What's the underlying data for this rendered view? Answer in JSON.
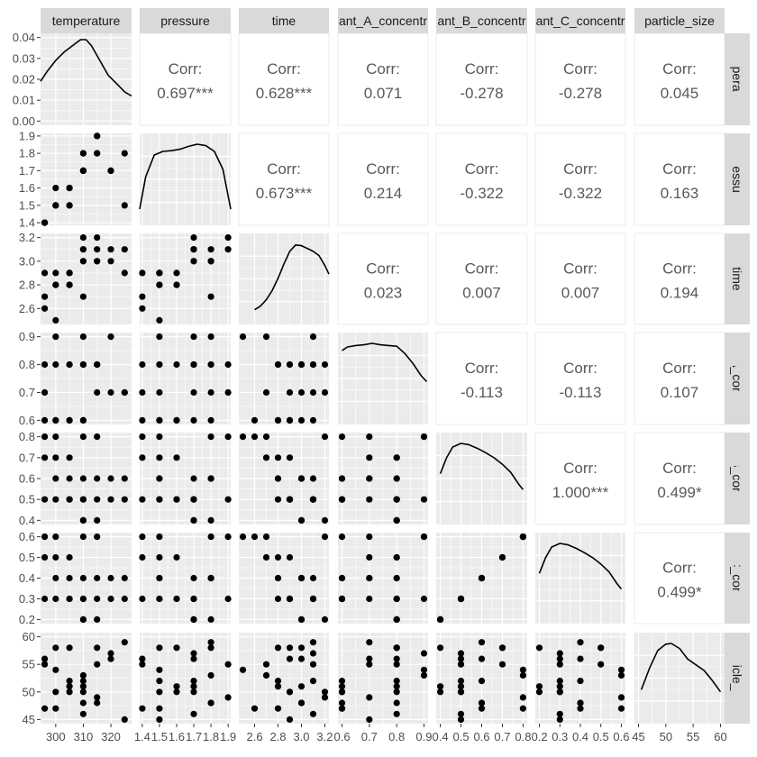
{
  "chart_data": {
    "type": "scatter-matrix",
    "variables": [
      "temperature",
      "pressure",
      "time",
      "reactant_A_concentration",
      "reactant_B_concentration",
      "reactant_C_concentration",
      "particle_size"
    ],
    "strip_labels": [
      "temperature",
      "pressure",
      "time",
      "ant_A_concentr",
      "ant_B_concentr",
      "ant_C_concentr",
      "particle_size"
    ],
    "ranges": [
      [
        294.5,
        327.5
      ],
      [
        1.385,
        1.915
      ],
      [
        2.465,
        3.235
      ],
      [
        0.585,
        0.915
      ],
      [
        0.38,
        0.82
      ],
      [
        0.18,
        0.62
      ],
      [
        44.25,
        60.75
      ]
    ],
    "ticks": [
      {
        "values": [
          300,
          310,
          320
        ],
        "labels": [
          "300",
          "310",
          "320"
        ]
      },
      {
        "values": [
          1.4,
          1.5,
          1.6,
          1.7,
          1.8,
          1.9
        ],
        "labels": [
          "1.4",
          "1.5",
          "1.6",
          "1.7",
          "1.8",
          "1.9"
        ]
      },
      {
        "values": [
          2.6,
          2.8,
          3.0,
          3.2
        ],
        "labels": [
          "2.6",
          "2.8",
          "3.0",
          "3.2"
        ]
      },
      {
        "values": [
          0.6,
          0.7,
          0.8,
          0.9
        ],
        "labels": [
          "0.6",
          "0.7",
          "0.8",
          "0.9"
        ]
      },
      {
        "values": [
          0.4,
          0.5,
          0.6,
          0.7,
          0.8
        ],
        "labels": [
          "0.4",
          "0.5",
          "0.6",
          "0.7",
          "0.8"
        ]
      },
      {
        "values": [
          0.2,
          0.3,
          0.4,
          0.5,
          0.6
        ],
        "labels": [
          "0.2",
          "0.3",
          "0.4",
          "0.5",
          "0.6"
        ]
      },
      {
        "values": [
          45,
          50,
          55,
          60
        ],
        "labels": [
          "45",
          "50",
          "55",
          "60"
        ]
      }
    ],
    "density_axis": {
      "ticks": [
        0,
        0.01,
        0.02,
        0.03,
        0.04
      ],
      "labels": [
        "0.00",
        "0.01",
        "0.02",
        "0.03",
        "0.04"
      ],
      "ylim": [
        -0.002,
        0.042
      ]
    },
    "density_curves": [
      {
        "x": [
          294.5,
          297,
          300,
          303,
          306,
          309,
          311,
          313,
          316,
          319,
          322,
          325,
          327.5
        ],
        "y": [
          0.019,
          0.024,
          0.029,
          0.033,
          0.036,
          0.039,
          0.039,
          0.036,
          0.029,
          0.022,
          0.018,
          0.014,
          0.012
        ]
      },
      {
        "x": [
          1.385,
          1.42,
          1.47,
          1.52,
          1.57,
          1.62,
          1.67,
          1.72,
          1.77,
          1.82,
          1.87,
          1.915
        ],
        "y": [
          0.1,
          0.55,
          0.85,
          0.9,
          0.91,
          0.93,
          0.97,
          1.0,
          0.98,
          0.9,
          0.65,
          0.1
        ]
      },
      {
        "x": [
          2.6,
          2.65,
          2.7,
          2.75,
          2.8,
          2.85,
          2.9,
          2.95,
          3.0,
          3.05,
          3.1,
          3.15,
          3.2,
          3.235
        ],
        "y": [
          0.08,
          0.13,
          0.22,
          0.35,
          0.52,
          0.72,
          0.9,
          0.99,
          0.98,
          0.94,
          0.9,
          0.84,
          0.7,
          0.58
        ]
      },
      {
        "x": [
          0.6,
          0.62,
          0.65,
          0.68,
          0.71,
          0.74,
          0.77,
          0.8,
          0.83,
          0.86,
          0.89,
          0.91
        ],
        "y": [
          0.9,
          0.95,
          0.97,
          0.98,
          1.0,
          0.98,
          0.97,
          0.96,
          0.86,
          0.72,
          0.55,
          0.47
        ]
      },
      {
        "x": [
          0.4,
          0.43,
          0.46,
          0.5,
          0.54,
          0.58,
          0.62,
          0.66,
          0.7,
          0.74,
          0.78,
          0.8
        ],
        "y": [
          0.58,
          0.8,
          0.95,
          1.0,
          0.98,
          0.93,
          0.87,
          0.8,
          0.71,
          0.6,
          0.43,
          0.36
        ]
      },
      {
        "x": [
          0.2,
          0.23,
          0.26,
          0.3,
          0.34,
          0.38,
          0.42,
          0.46,
          0.5,
          0.54,
          0.58,
          0.6
        ],
        "y": [
          0.58,
          0.8,
          0.95,
          1.0,
          0.98,
          0.93,
          0.87,
          0.8,
          0.71,
          0.6,
          0.43,
          0.36
        ]
      },
      {
        "x": [
          45.5,
          47,
          48.5,
          50,
          51,
          52.5,
          54,
          55.5,
          57,
          58.5,
          60
        ],
        "y": [
          0.35,
          0.65,
          0.9,
          0.99,
          1.0,
          0.93,
          0.78,
          0.7,
          0.62,
          0.48,
          0.32
        ]
      }
    ],
    "correlations": [
      {
        "row": 0,
        "col": 1,
        "value": "0.697***"
      },
      {
        "row": 0,
        "col": 2,
        "value": "0.628***"
      },
      {
        "row": 0,
        "col": 3,
        "value": "0.071"
      },
      {
        "row": 0,
        "col": 4,
        "value": "-0.278"
      },
      {
        "row": 0,
        "col": 5,
        "value": "-0.278"
      },
      {
        "row": 0,
        "col": 6,
        "value": "0.045"
      },
      {
        "row": 1,
        "col": 2,
        "value": "0.673***"
      },
      {
        "row": 1,
        "col": 3,
        "value": "0.214"
      },
      {
        "row": 1,
        "col": 4,
        "value": "-0.322"
      },
      {
        "row": 1,
        "col": 5,
        "value": "-0.322"
      },
      {
        "row": 1,
        "col": 6,
        "value": "0.163"
      },
      {
        "row": 2,
        "col": 3,
        "value": "0.023"
      },
      {
        "row": 2,
        "col": 4,
        "value": "0.007"
      },
      {
        "row": 2,
        "col": 5,
        "value": "0.007"
      },
      {
        "row": 2,
        "col": 6,
        "value": "0.194"
      },
      {
        "row": 3,
        "col": 4,
        "value": "-0.113"
      },
      {
        "row": 3,
        "col": 5,
        "value": "-0.113"
      },
      {
        "row": 3,
        "col": 6,
        "value": "0.107"
      },
      {
        "row": 4,
        "col": 5,
        "value": "1.000***"
      },
      {
        "row": 4,
        "col": 6,
        "value": "0.499*"
      },
      {
        "row": 5,
        "col": 6,
        "value": "0.499*"
      }
    ],
    "corr_label": "Corr:",
    "observations": [
      [
        296,
        1.4,
        2.6,
        0.6,
        0.8,
        0.6,
        47
      ],
      [
        296,
        1.4,
        2.7,
        0.7,
        0.7,
        0.5,
        55
      ],
      [
        296,
        1.4,
        2.9,
        0.8,
        0.5,
        0.3,
        56
      ],
      [
        300,
        1.5,
        2.5,
        0.9,
        0.8,
        0.6,
        54
      ],
      [
        300,
        1.6,
        2.8,
        0.8,
        0.7,
        0.5,
        58
      ],
      [
        300,
        1.5,
        2.9,
        0.6,
        0.5,
        0.3,
        50
      ],
      [
        300,
        1.5,
        2.8,
        0.6,
        0.6,
        0.4,
        47
      ],
      [
        305,
        1.5,
        2.9,
        0.8,
        0.7,
        0.5,
        58
      ],
      [
        305,
        1.6,
        2.8,
        0.6,
        0.5,
        0.3,
        51
      ],
      [
        305,
        1.5,
        2.8,
        0.8,
        0.6,
        0.4,
        52
      ],
      [
        305,
        1.6,
        2.9,
        0.6,
        0.5,
        0.3,
        50
      ],
      [
        310,
        1.8,
        2.7,
        0.9,
        0.8,
        0.6,
        53
      ],
      [
        310,
        1.7,
        3.1,
        0.6,
        0.5,
        0.3,
        52
      ],
      [
        310,
        1.7,
        3.0,
        0.8,
        0.4,
        0.2,
        51
      ],
      [
        310,
        1.7,
        3.2,
        0.8,
        0.4,
        0.2,
        50
      ],
      [
        310,
        1.8,
        3.0,
        0.6,
        0.6,
        0.4,
        48
      ],
      [
        310,
        1.7,
        3.1,
        0.8,
        0.5,
        0.3,
        46
      ],
      [
        315,
        1.9,
        3.2,
        0.7,
        0.8,
        0.6,
        49
      ],
      [
        315,
        1.8,
        3.0,
        0.8,
        0.6,
        0.4,
        48
      ],
      [
        315,
        1.9,
        3.1,
        0.8,
        0.5,
        0.3,
        55
      ],
      [
        315,
        1.8,
        3.0,
        0.8,
        0.4,
        0.2,
        58
      ],
      [
        320,
        1.7,
        3.1,
        0.9,
        0.5,
        0.3,
        57
      ],
      [
        320,
        1.7,
        3.0,
        0.7,
        0.6,
        0.4,
        56
      ],
      [
        325,
        1.8,
        3.1,
        0.7,
        0.6,
        0.4,
        59
      ],
      [
        325,
        1.5,
        2.9,
        0.7,
        0.5,
        0.3,
        45
      ]
    ]
  }
}
